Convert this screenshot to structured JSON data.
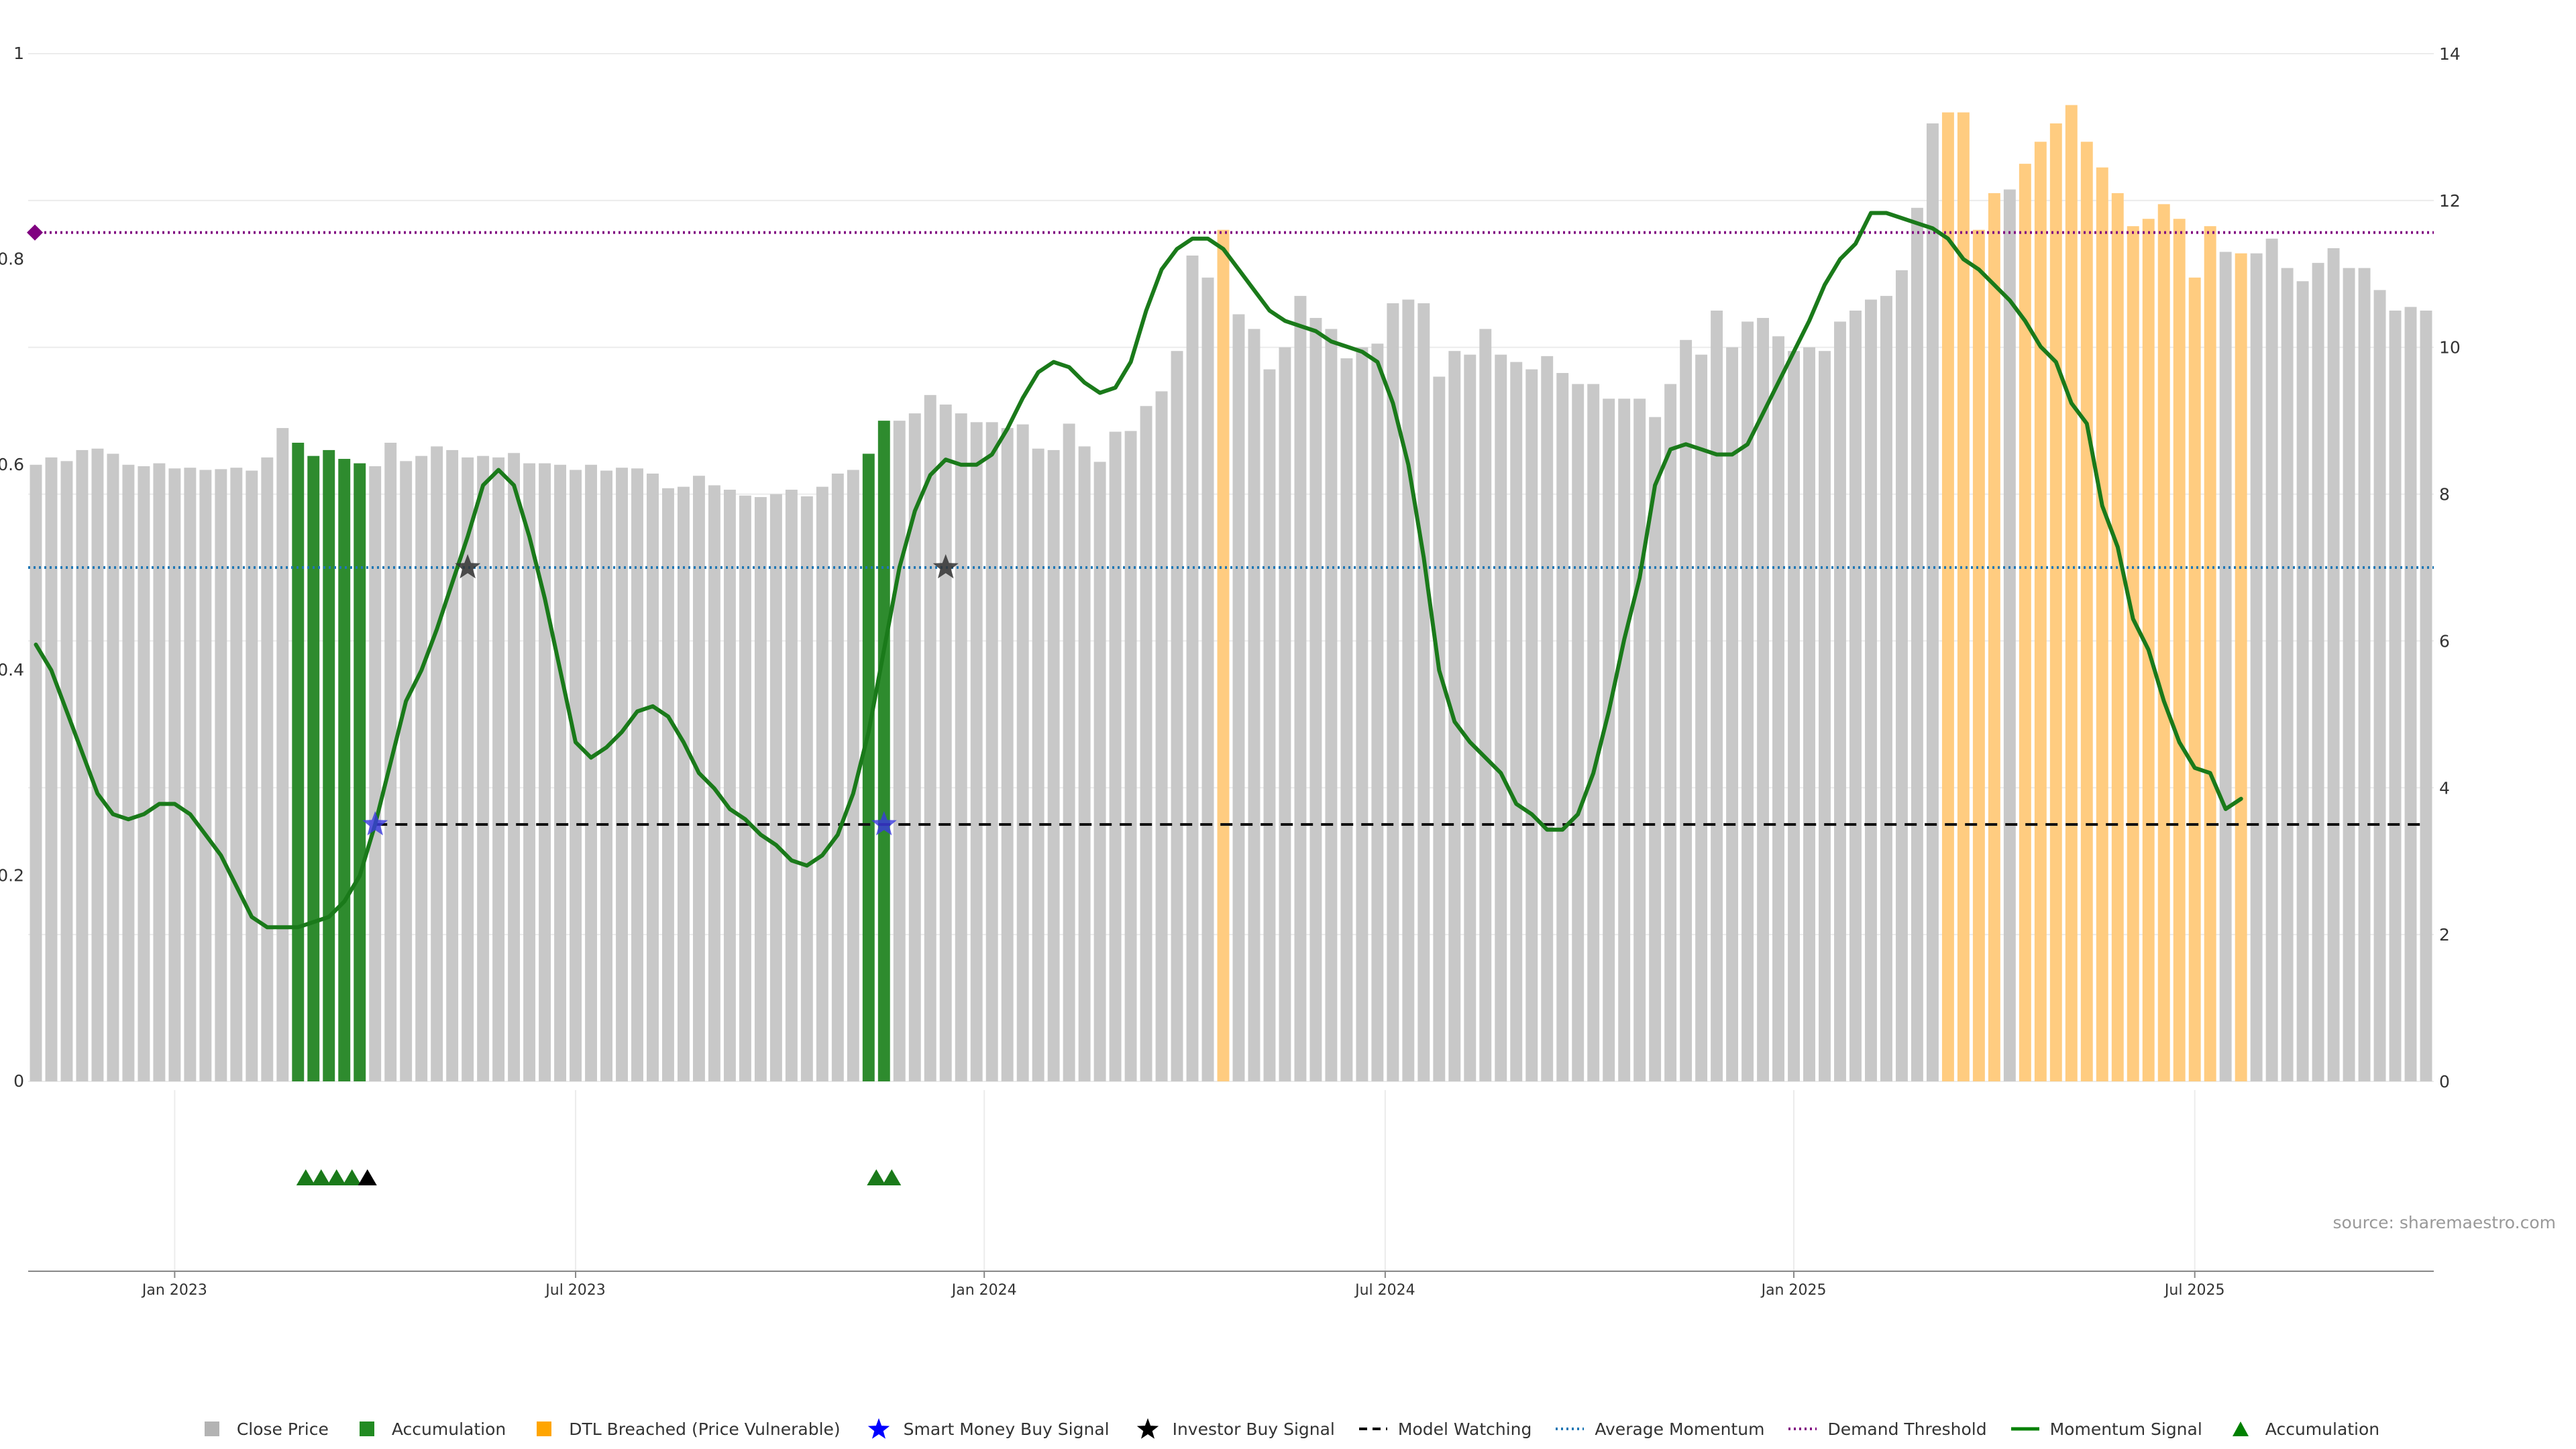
{
  "chart_data": {
    "type": "bar",
    "title": "",
    "xlabel": "",
    "ylabel": "",
    "left_axis": {
      "ylim": [
        0,
        1
      ],
      "ticks": [
        "0",
        "0.2",
        "0.4",
        "0.6",
        "0.8",
        "1"
      ]
    },
    "right_axis": {
      "ylim": [
        0,
        14
      ],
      "ticks": [
        "0",
        "2",
        "4",
        "6",
        "8",
        "10",
        "12",
        "14"
      ]
    },
    "x_ticks": [
      "Jan 2023",
      "Jul 2023",
      "Jan 2024",
      "Jul 2024",
      "Jan 2025",
      "Jul 2025"
    ],
    "x_tick_bar_index": [
      9,
      35,
      61.5,
      87.5,
      114,
      140
    ],
    "grid": true,
    "legend_position": "bottom",
    "close_price_weekly_right_axis": [
      8.4,
      8.5,
      8.45,
      8.6,
      8.62,
      8.55,
      8.4,
      8.38,
      8.42,
      8.35,
      8.36,
      8.33,
      8.34,
      8.36,
      8.32,
      8.5,
      8.9,
      8.7,
      8.52,
      8.6,
      8.48,
      8.42,
      8.38,
      8.7,
      8.45,
      8.52,
      8.65,
      8.6,
      8.5,
      8.52,
      8.5,
      8.56,
      8.42,
      8.42,
      8.4,
      8.33,
      8.4,
      8.32,
      8.36,
      8.35,
      8.28,
      8.08,
      8.1,
      8.25,
      8.12,
      8.06,
      7.98,
      7.96,
      8.0,
      8.06,
      7.97,
      8.1,
      8.28,
      8.33,
      8.55,
      9.0,
      9.0,
      9.1,
      9.35,
      9.22,
      9.1,
      8.98,
      8.98,
      8.9,
      8.95,
      8.62,
      8.6,
      8.96,
      8.65,
      8.44,
      8.85,
      8.86,
      9.2,
      9.4,
      9.95,
      11.25,
      10.95,
      11.6,
      10.45,
      10.25,
      9.7,
      10.0,
      10.7,
      10.4,
      10.25,
      9.85,
      10.0,
      10.05,
      10.6,
      10.65,
      10.6,
      9.6,
      9.95,
      9.9,
      10.25,
      9.9,
      9.8,
      9.7,
      9.88,
      9.65,
      9.5,
      9.5,
      9.3,
      9.3,
      9.3,
      9.05,
      9.5,
      10.1,
      9.9,
      10.5,
      10.0,
      10.35,
      10.4,
      10.15,
      9.95,
      10.0,
      9.95,
      10.35,
      10.5,
      10.65,
      10.7,
      11.05,
      11.9,
      13.05,
      13.2,
      13.2,
      11.6,
      12.1,
      12.15,
      12.5,
      12.8,
      13.05,
      13.3,
      12.8,
      12.45,
      12.1,
      11.65,
      11.75,
      11.95,
      11.75,
      10.95,
      11.65,
      11.3,
      11.28,
      11.28,
      11.48,
      11.08,
      10.9,
      11.15,
      11.35,
      11.08,
      11.08,
      10.78,
      10.5,
      10.55,
      10.5
    ],
    "bar_state_runs": [
      {
        "state": "close",
        "from": 0,
        "to": 16
      },
      {
        "state": "accumulation",
        "from": 17,
        "to": 21
      },
      {
        "state": "close",
        "from": 22,
        "to": 53
      },
      {
        "state": "accumulation",
        "from": 54,
        "to": 55
      },
      {
        "state": "close",
        "from": 56,
        "to": 76
      },
      {
        "state": "dtl",
        "from": 77,
        "to": 77
      },
      {
        "state": "close",
        "from": 78,
        "to": 123
      },
      {
        "state": "dtl",
        "from": 124,
        "to": 127
      },
      {
        "state": "close",
        "from": 128,
        "to": 128
      },
      {
        "state": "dtl",
        "from": 129,
        "to": 141
      },
      {
        "state": "close",
        "from": 142,
        "to": 142
      },
      {
        "state": "dtl",
        "from": 143,
        "to": 143
      },
      {
        "state": "close",
        "from": 144,
        "to": 156
      }
    ],
    "momentum_signal_left_axis": [
      [
        0,
        0.425
      ],
      [
        1,
        0.4
      ],
      [
        2,
        0.36
      ],
      [
        3,
        0.32
      ],
      [
        4,
        0.28
      ],
      [
        5,
        0.26
      ],
      [
        6,
        0.255
      ],
      [
        7,
        0.26
      ],
      [
        8,
        0.27
      ],
      [
        9,
        0.27
      ],
      [
        10,
        0.26
      ],
      [
        11,
        0.24
      ],
      [
        12,
        0.22
      ],
      [
        13,
        0.19
      ],
      [
        14,
        0.16
      ],
      [
        15,
        0.15
      ],
      [
        16,
        0.15
      ],
      [
        17,
        0.15
      ],
      [
        18,
        0.155
      ],
      [
        19,
        0.16
      ],
      [
        20,
        0.175
      ],
      [
        21,
        0.2
      ],
      [
        22,
        0.25
      ],
      [
        23,
        0.31
      ],
      [
        24,
        0.37
      ],
      [
        25,
        0.4
      ],
      [
        26,
        0.44
      ],
      [
        27,
        0.485
      ],
      [
        28,
        0.53
      ],
      [
        29,
        0.58
      ],
      [
        30,
        0.595
      ],
      [
        31,
        0.58
      ],
      [
        32,
        0.53
      ],
      [
        33,
        0.47
      ],
      [
        34,
        0.4
      ],
      [
        35,
        0.33
      ],
      [
        36,
        0.315
      ],
      [
        37,
        0.325
      ],
      [
        38,
        0.34
      ],
      [
        39,
        0.36
      ],
      [
        40,
        0.365
      ],
      [
        41,
        0.355
      ],
      [
        42,
        0.33
      ],
      [
        43,
        0.3
      ],
      [
        44,
        0.285
      ],
      [
        45,
        0.265
      ],
      [
        46,
        0.255
      ],
      [
        47,
        0.24
      ],
      [
        48,
        0.23
      ],
      [
        49,
        0.215
      ],
      [
        50,
        0.21
      ],
      [
        51,
        0.22
      ],
      [
        52,
        0.24
      ],
      [
        53,
        0.28
      ],
      [
        54,
        0.34
      ],
      [
        55,
        0.42
      ],
      [
        56,
        0.5
      ],
      [
        57,
        0.555
      ],
      [
        58,
        0.59
      ],
      [
        59,
        0.605
      ],
      [
        60,
        0.6
      ],
      [
        61,
        0.6
      ],
      [
        62,
        0.61
      ],
      [
        63,
        0.635
      ],
      [
        64,
        0.665
      ],
      [
        65,
        0.69
      ],
      [
        66,
        0.7
      ],
      [
        67,
        0.695
      ],
      [
        68,
        0.68
      ],
      [
        69,
        0.67
      ],
      [
        70,
        0.675
      ],
      [
        71,
        0.7
      ],
      [
        72,
        0.75
      ],
      [
        73,
        0.79
      ],
      [
        74,
        0.81
      ],
      [
        75,
        0.82
      ],
      [
        76,
        0.82
      ],
      [
        77,
        0.81
      ],
      [
        78,
        0.79
      ],
      [
        79,
        0.77
      ],
      [
        80,
        0.75
      ],
      [
        81,
        0.74
      ],
      [
        82,
        0.735
      ],
      [
        83,
        0.73
      ],
      [
        84,
        0.72
      ],
      [
        85,
        0.715
      ],
      [
        86,
        0.71
      ],
      [
        87,
        0.7
      ],
      [
        88,
        0.66
      ],
      [
        89,
        0.6
      ],
      [
        90,
        0.51
      ],
      [
        91,
        0.4
      ],
      [
        92,
        0.35
      ],
      [
        93,
        0.33
      ],
      [
        94,
        0.315
      ],
      [
        95,
        0.3
      ],
      [
        96,
        0.27
      ],
      [
        97,
        0.26
      ],
      [
        98,
        0.245
      ],
      [
        99,
        0.245
      ],
      [
        100,
        0.26
      ],
      [
        101,
        0.3
      ],
      [
        102,
        0.36
      ],
      [
        103,
        0.43
      ],
      [
        104,
        0.49
      ],
      [
        105,
        0.58
      ],
      [
        106,
        0.615
      ],
      [
        107,
        0.62
      ],
      [
        108,
        0.615
      ],
      [
        109,
        0.61
      ],
      [
        110,
        0.61
      ],
      [
        111,
        0.62
      ],
      [
        112,
        0.65
      ],
      [
        113,
        0.68
      ],
      [
        114,
        0.71
      ],
      [
        115,
        0.74
      ],
      [
        116,
        0.775
      ],
      [
        117,
        0.8
      ],
      [
        118,
        0.815
      ],
      [
        119,
        0.845
      ],
      [
        120,
        0.845
      ],
      [
        121,
        0.84
      ],
      [
        122,
        0.835
      ],
      [
        123,
        0.83
      ],
      [
        124,
        0.82
      ],
      [
        125,
        0.8
      ],
      [
        126,
        0.79
      ],
      [
        127,
        0.775
      ],
      [
        128,
        0.76
      ],
      [
        129,
        0.74
      ],
      [
        130,
        0.715
      ],
      [
        131,
        0.7
      ],
      [
        132,
        0.66
      ],
      [
        133,
        0.64
      ],
      [
        134,
        0.56
      ],
      [
        135,
        0.52
      ],
      [
        136,
        0.45
      ],
      [
        137,
        0.42
      ],
      [
        138,
        0.37
      ],
      [
        139,
        0.33
      ],
      [
        140,
        0.305
      ],
      [
        141,
        0.3
      ],
      [
        142,
        0.265
      ],
      [
        143,
        0.275
      ]
    ],
    "reference_lines": {
      "model_watching": {
        "value_left": 0.25,
        "from_bar": 22
      },
      "average_momentum": {
        "value_left": 0.5
      },
      "demand_threshold": {
        "value_left": 0.826
      }
    },
    "smart_money_buy_signals": [
      [
        22,
        0.25
      ],
      [
        55,
        0.25
      ]
    ],
    "investor_buy_signals": [
      [
        28,
        0.5
      ],
      [
        59,
        0.5
      ]
    ],
    "accumulation_markers_bar_index": [
      17.5,
      18.5,
      19.5,
      20.5,
      54.5,
      55.5
    ],
    "investor_marker_bar_index": [
      21.5
    ],
    "demand_marker": {
      "x": 0,
      "y": 0.826
    },
    "legend": [
      {
        "label": "Close Price",
        "type": "square",
        "color": "#b3b3b3"
      },
      {
        "label": "Accumulation",
        "type": "square",
        "color": "#228b22"
      },
      {
        "label": "DTL Breached (Price Vulnerable)",
        "type": "square",
        "color": "#ffa500"
      },
      {
        "label": "Smart Money Buy Signal",
        "type": "star",
        "color": "#0000ff"
      },
      {
        "label": "Investor Buy Signal",
        "type": "star",
        "color": "#000000"
      },
      {
        "label": "Model Watching",
        "type": "dash",
        "color": "#000000"
      },
      {
        "label": "Average Momentum",
        "type": "dot",
        "color": "#1f77b4"
      },
      {
        "label": "Demand Threshold",
        "type": "dot",
        "color": "#800080"
      },
      {
        "label": "Momentum Signal",
        "type": "line",
        "color": "#008000"
      },
      {
        "label": "Accumulation",
        "type": "triangle",
        "color": "#008000"
      }
    ],
    "colors": {
      "close": "#c8c8c8",
      "accumulation": "#2e8b2e",
      "dtl": "#ffcc80",
      "momentum": "#1a7a1a",
      "model_watching": "#111111",
      "average_momentum": "#1f77b4",
      "demand_threshold": "#800080"
    }
  },
  "source_text": "source: sharemaestro.com"
}
